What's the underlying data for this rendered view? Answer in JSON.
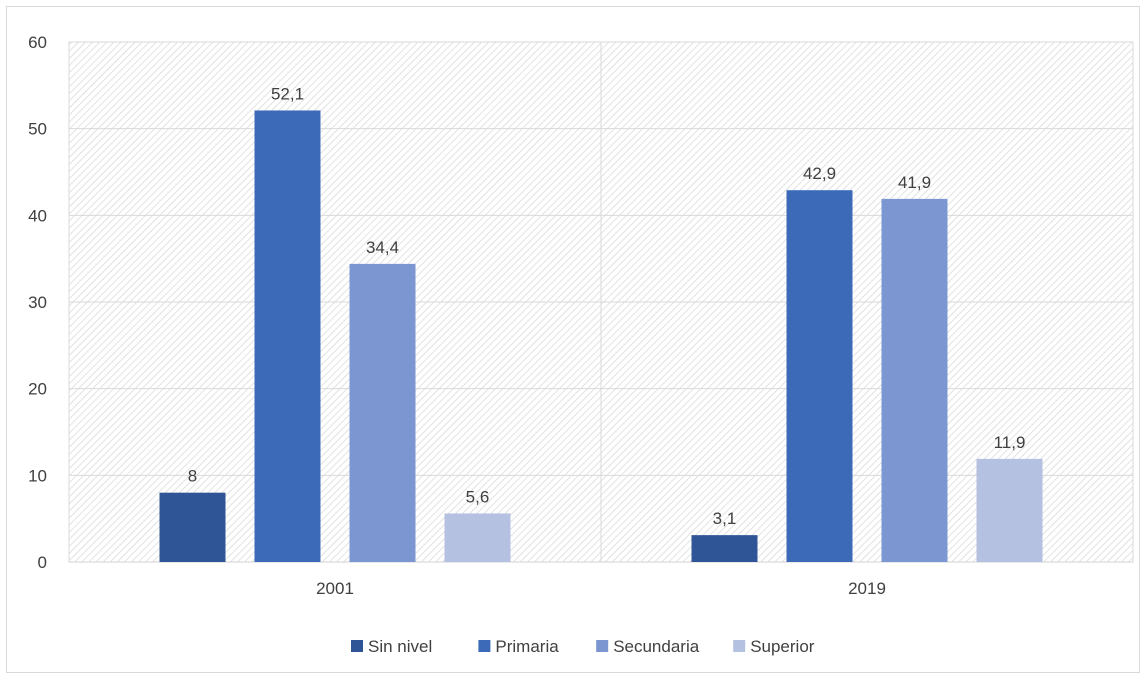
{
  "chart_data": {
    "type": "bar",
    "title": "",
    "xlabel": "",
    "ylabel": "",
    "categories": [
      "2001",
      "2019"
    ],
    "series": [
      {
        "name": "Sin nivel",
        "values": [
          8,
          3.1
        ],
        "labels": [
          "8",
          "3,1"
        ],
        "color": "#2f5597"
      },
      {
        "name": "Primaria",
        "values": [
          52.1,
          42.9
        ],
        "labels": [
          "52,1",
          "42,9"
        ],
        "color": "#3d6ab8"
      },
      {
        "name": "Secundaria",
        "values": [
          34.4,
          41.9
        ],
        "labels": [
          "34,4",
          "41,9"
        ],
        "color": "#7b96d0"
      },
      {
        "name": "Superior",
        "values": [
          5.6,
          11.9
        ],
        "labels": [
          "5,6",
          "11,9"
        ],
        "color": "#b4c1e1"
      }
    ],
    "ylim": [
      0,
      60
    ],
    "yticks": [
      0,
      10,
      20,
      30,
      40,
      50,
      60
    ],
    "ytick_labels": [
      "0",
      "10",
      "20",
      "30",
      "40",
      "50",
      "60"
    ],
    "grid": true,
    "legend_position": "bottom",
    "plot_background": "hatched"
  }
}
